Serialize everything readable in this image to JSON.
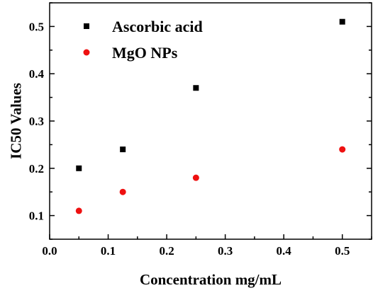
{
  "chart_data": {
    "type": "scatter",
    "title": "",
    "xlabel": "Concentration mg/mL",
    "ylabel": "IC50 Values",
    "xlim": [
      0.0,
      0.55
    ],
    "ylim": [
      0.05,
      0.55
    ],
    "xticks": [
      0.0,
      0.1,
      0.2,
      0.3,
      0.4,
      0.5
    ],
    "xtick_labels": [
      "0.0",
      "0.1",
      "0.2",
      "0.3",
      "0.4",
      "0.5"
    ],
    "yticks": [
      0.1,
      0.2,
      0.3,
      0.4,
      0.5
    ],
    "ytick_labels": [
      "0.1",
      "0.2",
      "0.3",
      "0.4",
      "0.5"
    ],
    "grid": false,
    "legend_position": "top-left",
    "series": [
      {
        "name": "Ascorbic acid",
        "marker": "square",
        "color": "#000000",
        "x": [
          0.05,
          0.125,
          0.25,
          0.5
        ],
        "y": [
          0.2,
          0.24,
          0.37,
          0.51
        ]
      },
      {
        "name": "MgO NPs",
        "marker": "circle",
        "color": "#ee1111",
        "x": [
          0.05,
          0.125,
          0.25,
          0.5
        ],
        "y": [
          0.11,
          0.15,
          0.18,
          0.24
        ]
      }
    ]
  }
}
